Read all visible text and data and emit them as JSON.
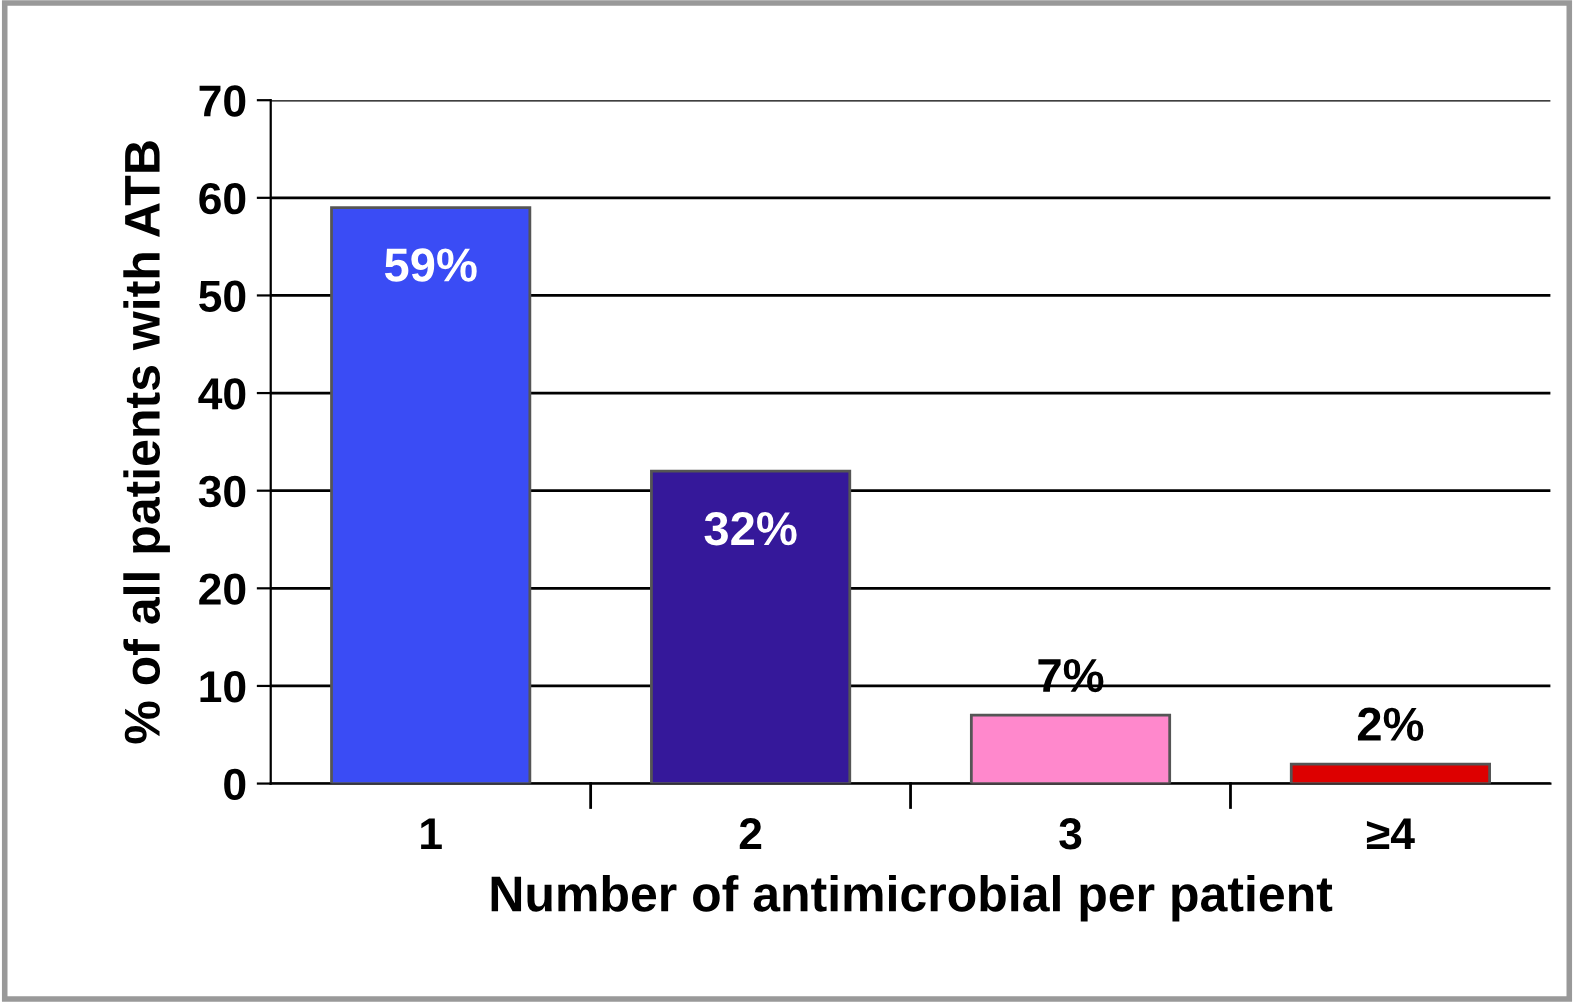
{
  "chart_data": {
    "type": "bar",
    "xlabel": "Number of antimicrobial per patient",
    "ylabel": "% of all patients with ATB",
    "categories": [
      "1",
      "2",
      "3",
      "≥4"
    ],
    "values": [
      59,
      32,
      7,
      2
    ],
    "colors": [
      "#3a4cf5",
      "#35189a",
      "#ff88cc",
      "#dd0000"
    ],
    "value_labels": [
      "59%",
      "32%",
      "7%",
      "2%"
    ],
    "ylim": [
      0,
      70
    ],
    "yticks": [
      0,
      10,
      20,
      30,
      40,
      50,
      60,
      70
    ],
    "grid": "y"
  }
}
